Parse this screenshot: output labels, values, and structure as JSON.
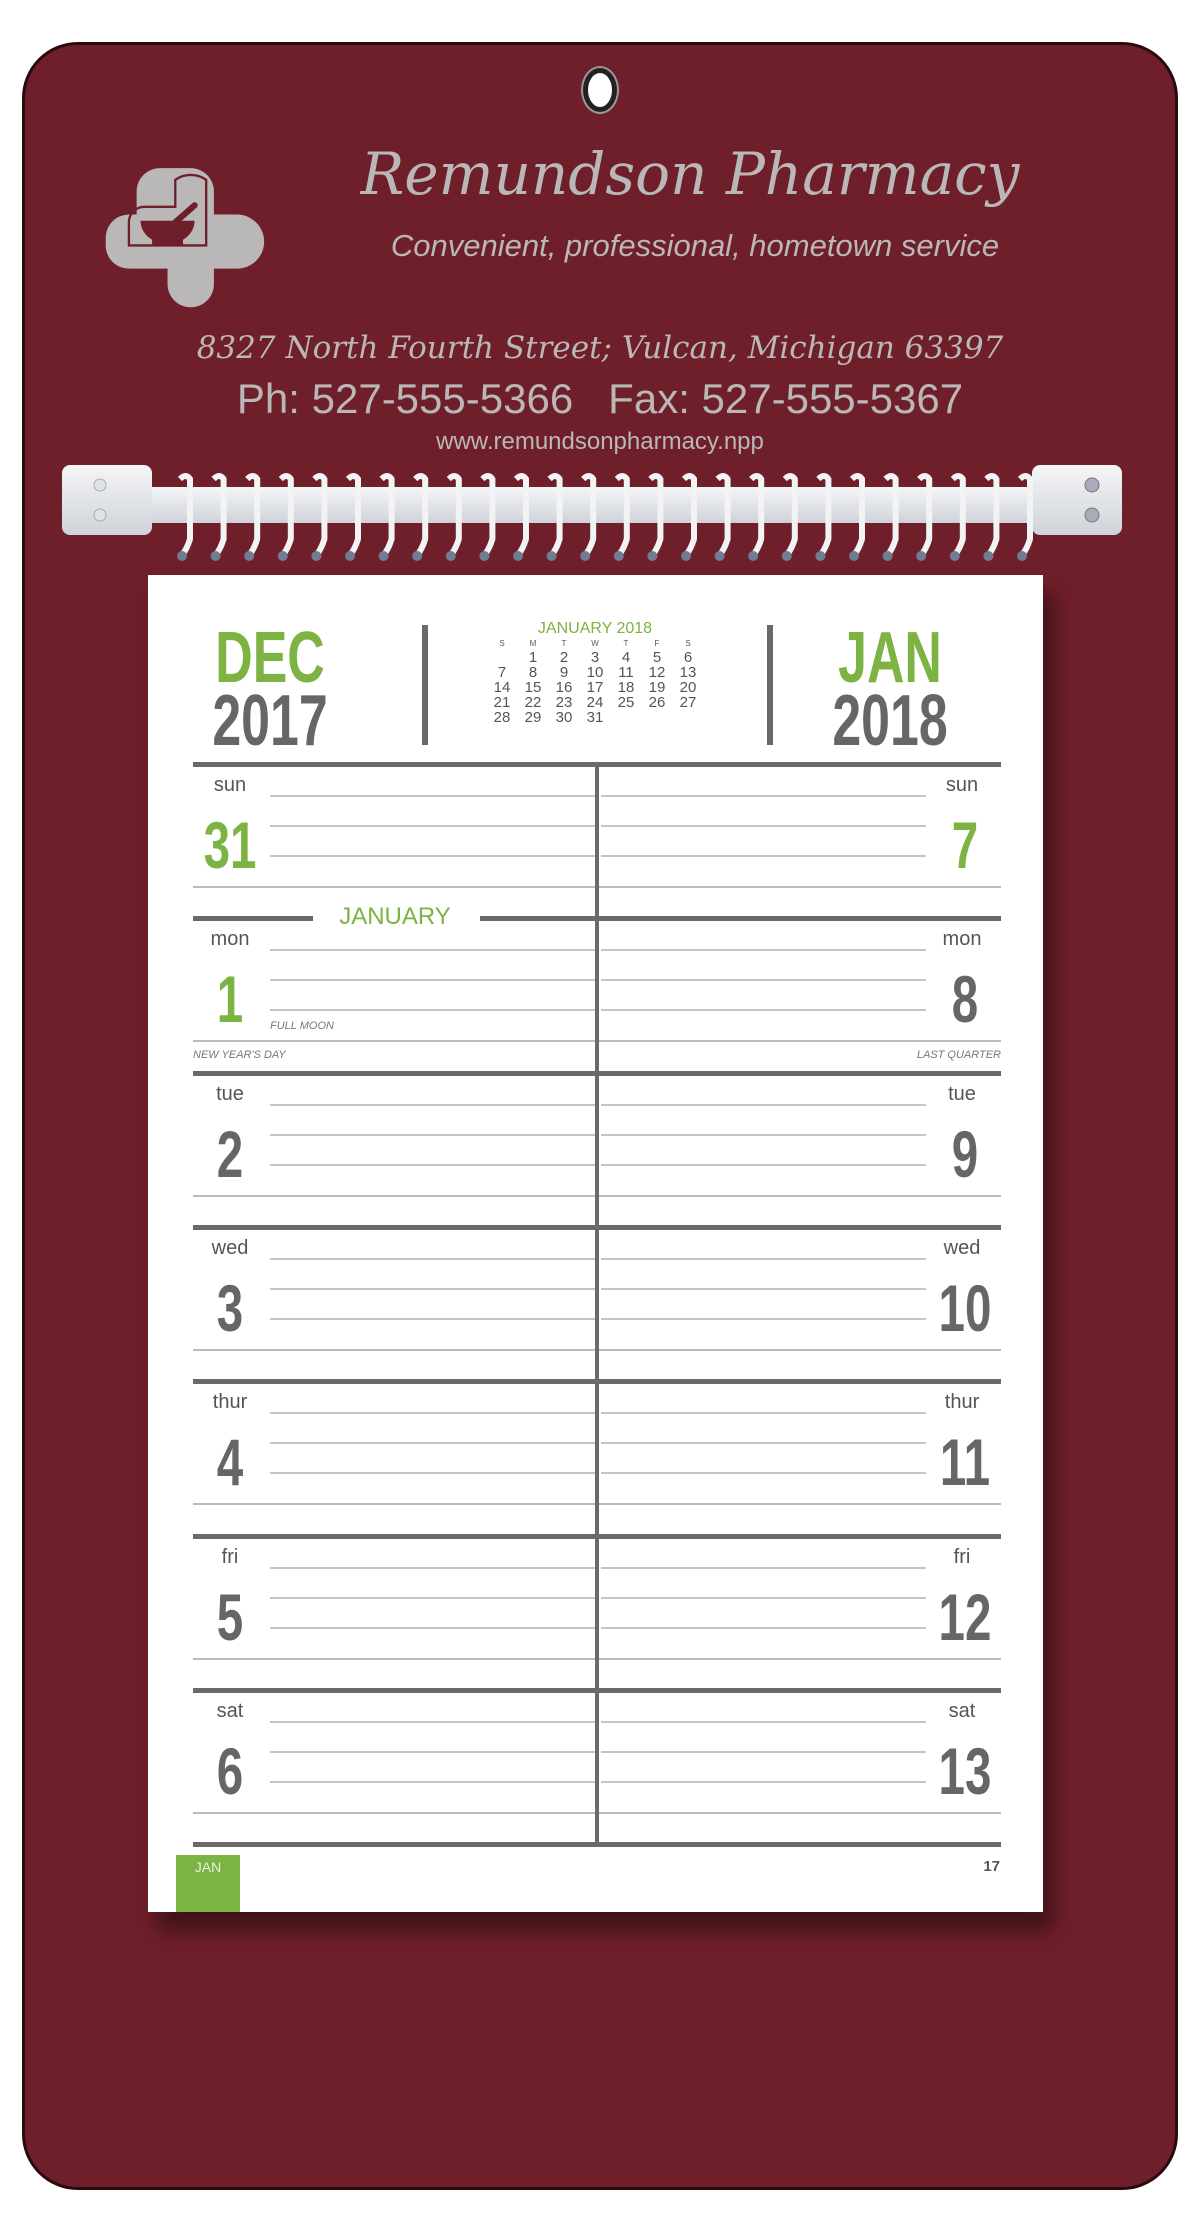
{
  "colors": {
    "board": "#6f1f2a",
    "accent_green": "#7cb342",
    "text_gray": "#666666",
    "print_gray": "#b9b7b8"
  },
  "header": {
    "business_name": "Remundson Pharmacy",
    "tagline": "Convenient, professional, hometown service",
    "address": "8327 North Fourth Street; Vulcan, Michigan 63397",
    "phone": "Ph: 527-555-5366   Fax: 527-555-5367",
    "website": "www.remundsonpharmacy.npp",
    "logo_icon": "cross-mortar-pestle-icon"
  },
  "calendar": {
    "left_month": "DEC",
    "left_year": "2017",
    "right_month": "JAN",
    "right_year": "2018",
    "mini_calendar": {
      "title": "JANUARY 2018",
      "weekdays": [
        "S",
        "M",
        "T",
        "W",
        "T",
        "F",
        "S"
      ],
      "weeks": [
        [
          "",
          "1",
          "2",
          "3",
          "4",
          "5",
          "6"
        ],
        [
          "7",
          "8",
          "9",
          "10",
          "11",
          "12",
          "13"
        ],
        [
          "14",
          "15",
          "16",
          "17",
          "18",
          "19",
          "20"
        ],
        [
          "21",
          "22",
          "23",
          "24",
          "25",
          "26",
          "27"
        ],
        [
          "28",
          "29",
          "30",
          "31",
          "",
          "",
          ""
        ]
      ]
    },
    "month_banner": "JANUARY",
    "rows": [
      {
        "day": "sun",
        "left": "31",
        "right": "7",
        "left_green": true,
        "right_green": true
      },
      {
        "day": "mon",
        "left": "1",
        "right": "8",
        "left_green": true,
        "right_green": false,
        "left_moon": "FULL MOON",
        "left_holiday": "NEW YEAR'S DAY",
        "right_holiday": "LAST QUARTER"
      },
      {
        "day": "tue",
        "left": "2",
        "right": "9"
      },
      {
        "day": "wed",
        "left": "3",
        "right": "10"
      },
      {
        "day": "thur",
        "left": "4",
        "right": "11"
      },
      {
        "day": "fri",
        "left": "5",
        "right": "12"
      },
      {
        "day": "sat",
        "left": "6",
        "right": "13"
      }
    ],
    "footer_tab": "JAN",
    "page_number": "17"
  }
}
